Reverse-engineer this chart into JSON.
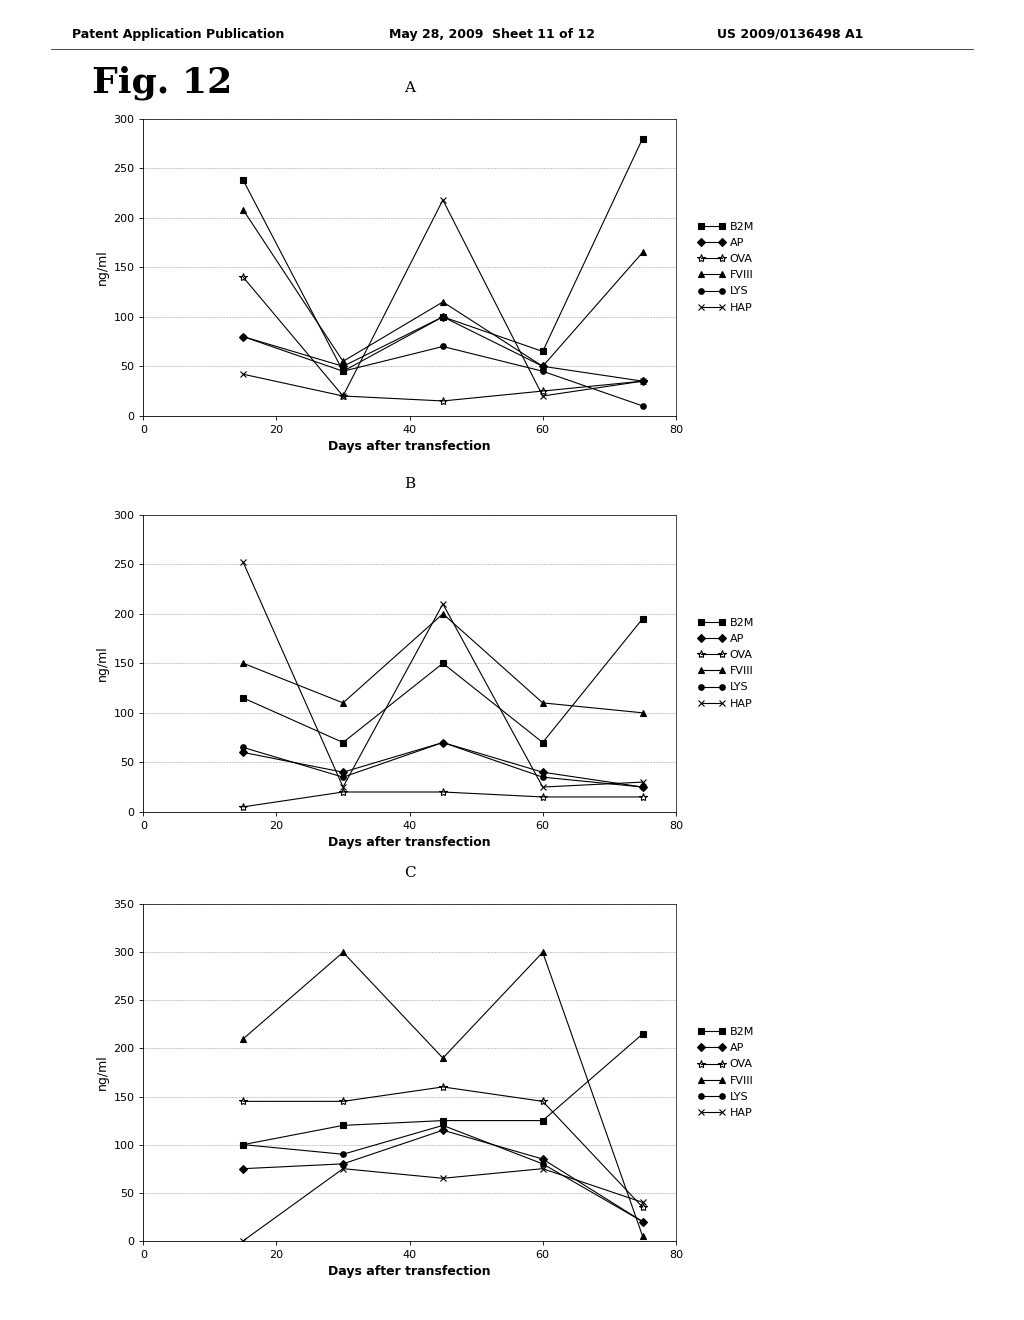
{
  "header_left": "Patent Application Publication",
  "header_mid": "May 28, 2009  Sheet 11 of 12",
  "header_right": "US 2009/0136498 A1",
  "fig_title": "Fig. 12",
  "xlabel": "Days after transfection",
  "ylabel": "ng/ml",
  "xlim": [
    0,
    80
  ],
  "series_labels": [
    "B2M",
    "AP",
    "OVA",
    "FVIII",
    "LYS",
    "HAP"
  ],
  "charts": [
    {
      "title": "A",
      "ylim": [
        0,
        300
      ],
      "yticks": [
        0,
        50,
        100,
        150,
        200,
        250,
        300
      ],
      "series": {
        "B2M": {
          "x": [
            15,
            30,
            45,
            60,
            75
          ],
          "y": [
            238,
            45,
            100,
            65,
            280
          ]
        },
        "AP": {
          "x": [
            15,
            30,
            45,
            60,
            75
          ],
          "y": [
            80,
            50,
            100,
            50,
            35
          ]
        },
        "OVA": {
          "x": [
            15,
            30,
            45,
            60,
            75
          ],
          "y": [
            140,
            20,
            15,
            25,
            35
          ]
        },
        "FVIII": {
          "x": [
            15,
            30,
            45,
            60,
            75
          ],
          "y": [
            208,
            55,
            115,
            50,
            165
          ]
        },
        "LYS": {
          "x": [
            15,
            30,
            45,
            60,
            75
          ],
          "y": [
            80,
            45,
            70,
            45,
            10
          ]
        },
        "HAP": {
          "x": [
            15,
            30,
            45,
            60,
            75
          ],
          "y": [
            42,
            20,
            218,
            20,
            35
          ]
        }
      }
    },
    {
      "title": "B",
      "ylim": [
        0,
        300
      ],
      "yticks": [
        0,
        50,
        100,
        150,
        200,
        250,
        300
      ],
      "series": {
        "B2M": {
          "x": [
            15,
            30,
            45,
            60,
            75
          ],
          "y": [
            115,
            70,
            150,
            70,
            195
          ]
        },
        "AP": {
          "x": [
            15,
            30,
            45,
            60,
            75
          ],
          "y": [
            60,
            40,
            70,
            40,
            25
          ]
        },
        "OVA": {
          "x": [
            15,
            30,
            45,
            60,
            75
          ],
          "y": [
            5,
            20,
            20,
            15,
            15
          ]
        },
        "FVIII": {
          "x": [
            15,
            30,
            45,
            60,
            75
          ],
          "y": [
            150,
            110,
            200,
            110,
            100
          ]
        },
        "LYS": {
          "x": [
            15,
            30,
            45,
            60,
            75
          ],
          "y": [
            65,
            35,
            70,
            35,
            25
          ]
        },
        "HAP": {
          "x": [
            15,
            30,
            45,
            60,
            75
          ],
          "y": [
            252,
            25,
            210,
            25,
            30
          ]
        }
      }
    },
    {
      "title": "C",
      "ylim": [
        0,
        350
      ],
      "yticks": [
        0,
        50,
        100,
        150,
        200,
        250,
        300,
        350
      ],
      "series": {
        "B2M": {
          "x": [
            15,
            30,
            45,
            60,
            75
          ],
          "y": [
            100,
            120,
            125,
            125,
            215
          ]
        },
        "AP": {
          "x": [
            15,
            30,
            45,
            60,
            75
          ],
          "y": [
            75,
            80,
            115,
            85,
            20
          ]
        },
        "OVA": {
          "x": [
            15,
            30,
            45,
            60,
            75
          ],
          "y": [
            145,
            145,
            160,
            145,
            35
          ]
        },
        "FVIII": {
          "x": [
            15,
            30,
            45,
            60,
            75
          ],
          "y": [
            210,
            300,
            190,
            300,
            5
          ]
        },
        "LYS": {
          "x": [
            15,
            30,
            45,
            60,
            75
          ],
          "y": [
            100,
            90,
            120,
            80,
            20
          ]
        },
        "HAP": {
          "x": [
            15,
            30,
            45,
            60,
            75
          ],
          "y": [
            0,
            75,
            65,
            75,
            40
          ]
        }
      }
    }
  ],
  "bg_color": "#ffffff",
  "fontsize_header": 9,
  "fontsize_figtitle": 26,
  "fontsize_subtitle": 11,
  "fontsize_axis_label": 9,
  "fontsize_tick": 8,
  "fontsize_legend": 8
}
